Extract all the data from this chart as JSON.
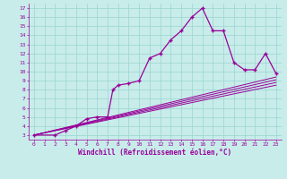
{
  "xlabel": "Windchill (Refroidissement éolien,°C)",
  "bg_color": "#c8ecea",
  "grid_color": "#a0d8d4",
  "line_color": "#990099",
  "xlim": [
    -0.5,
    23.5
  ],
  "ylim": [
    2.5,
    17.5
  ],
  "xticks": [
    0,
    1,
    2,
    3,
    4,
    5,
    6,
    7,
    8,
    9,
    10,
    11,
    12,
    13,
    14,
    15,
    16,
    17,
    18,
    19,
    20,
    21,
    22,
    23
  ],
  "yticks": [
    3,
    4,
    5,
    6,
    7,
    8,
    9,
    10,
    11,
    12,
    13,
    14,
    15,
    16,
    17
  ],
  "main_curve_x": [
    0,
    2,
    3,
    4,
    5,
    6,
    7,
    7.5,
    8,
    9,
    10,
    11,
    12,
    13,
    14,
    15,
    16,
    17,
    18,
    19,
    20,
    21,
    22,
    23
  ],
  "main_curve_y": [
    3,
    3,
    3.5,
    4,
    4.8,
    5,
    5,
    8,
    8.5,
    8.7,
    9,
    11.5,
    12,
    13.5,
    14.5,
    16,
    17,
    14.5,
    14.5,
    11,
    10.2,
    10.2,
    12,
    9.8
  ],
  "ref_lines": [
    {
      "x": [
        0,
        23
      ],
      "y": [
        3,
        8.5
      ]
    },
    {
      "x": [
        0,
        23
      ],
      "y": [
        3,
        8.8
      ]
    },
    {
      "x": [
        0,
        23
      ],
      "y": [
        3,
        9.1
      ]
    },
    {
      "x": [
        0,
        23
      ],
      "y": [
        3,
        9.4
      ]
    }
  ]
}
